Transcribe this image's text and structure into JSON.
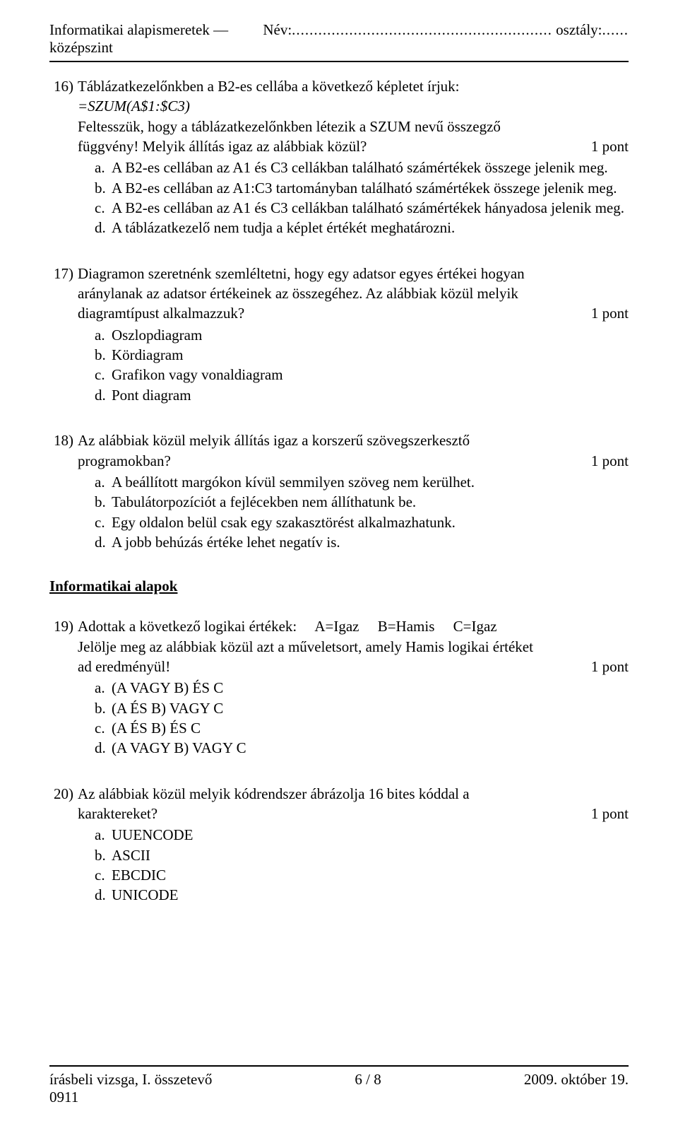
{
  "header": {
    "left": "Informatikai alapismeretek — középszint",
    "name_label": "Név:",
    "name_dots": "...........................................................",
    "class_label": "osztály:",
    "class_dots": "......"
  },
  "questions": [
    {
      "num": "16)",
      "points": "1 pont",
      "text_lines": [
        "Táblázatkezelőnkben a B2-es cellába a következő képletet írjuk:"
      ],
      "formula": "=SZUM(A$1:$C3)",
      "after_formula": [
        "Feltesszük, hogy a táblázatkezelőnkben létezik a SZUM nevű összegző",
        "függvény! Melyik állítás igaz az alábbiak közül?"
      ],
      "options": [
        {
          "l": "a.",
          "t": "A B2-es cellában az A1 és C3 cellákban található számértékek összege jelenik meg."
        },
        {
          "l": "b.",
          "t": "A B2-es cellában az A1:C3 tartományban található számértékek összege jelenik meg."
        },
        {
          "l": "c.",
          "t": "A B2-es cellában az A1 és C3 cellákban található számértékek hányadosa jelenik meg."
        },
        {
          "l": "d.",
          "t": "A táblázatkezelő nem tudja a képlet értékét meghatározni."
        }
      ]
    },
    {
      "num": "17)",
      "points": "1 pont",
      "text_lines": [
        "Diagramon szeretnénk szemléltetni, hogy egy adatsor egyes értékei hogyan",
        "aránylanak az adatsor értékeinek az összegéhez. Az alábbiak közül melyik",
        "diagramtípust alkalmazzuk?"
      ],
      "options": [
        {
          "l": "a.",
          "t": "Oszlopdiagram"
        },
        {
          "l": "b.",
          "t": "Kördiagram"
        },
        {
          "l": "c.",
          "t": "Grafikon vagy vonaldiagram"
        },
        {
          "l": "d.",
          "t": "Pont diagram"
        }
      ]
    },
    {
      "num": "18)",
      "points": "1 pont",
      "text_lines": [
        "Az alábbiak közül melyik állítás igaz a korszerű szövegszerkesztő",
        "programokban?"
      ],
      "options": [
        {
          "l": "a.",
          "t": "A beállított margókon kívül semmilyen szöveg nem kerülhet."
        },
        {
          "l": "b.",
          "t": "Tabulátorpozíciót a fejlécekben nem állíthatunk be."
        },
        {
          "l": "c.",
          "t": "Egy oldalon belül csak egy szakasztörést alkalmazhatunk."
        },
        {
          "l": "d.",
          "t": "A jobb behúzás értéke lehet negatív is."
        }
      ]
    }
  ],
  "section": {
    "title": "Informatikai alapok"
  },
  "questions2": [
    {
      "num": "19)",
      "points": "1 pont",
      "firstline": "Adottak a következő logikai értékek:     A=Igaz     B=Hamis     C=Igaz",
      "text_lines": [
        "Jelölje meg az alábbiak közül azt a műveletsort, amely Hamis logikai értéket",
        "ad eredményül!"
      ],
      "options": [
        {
          "l": "a.",
          "t": "(A VAGY B) ÉS C"
        },
        {
          "l": "b.",
          "t": "(A ÉS B) VAGY C"
        },
        {
          "l": "c.",
          "t": "(A ÉS B) ÉS C"
        },
        {
          "l": "d.",
          "t": "(A VAGY B) VAGY C"
        }
      ]
    },
    {
      "num": "20)",
      "points": "1 pont",
      "text_lines": [
        "Az alábbiak közül melyik kódrendszer ábrázolja 16 bites kóddal a",
        "karaktereket?"
      ],
      "options": [
        {
          "l": "a.",
          "t": "UUENCODE"
        },
        {
          "l": "b.",
          "t": "ASCII"
        },
        {
          "l": "c.",
          "t": "EBCDIC"
        },
        {
          "l": "d.",
          "t": "UNICODE"
        }
      ]
    }
  ],
  "footer": {
    "left1": "írásbeli vizsga, I. összetevő",
    "left2": "0911",
    "center": "6 / 8",
    "right": "2009. október 19."
  }
}
